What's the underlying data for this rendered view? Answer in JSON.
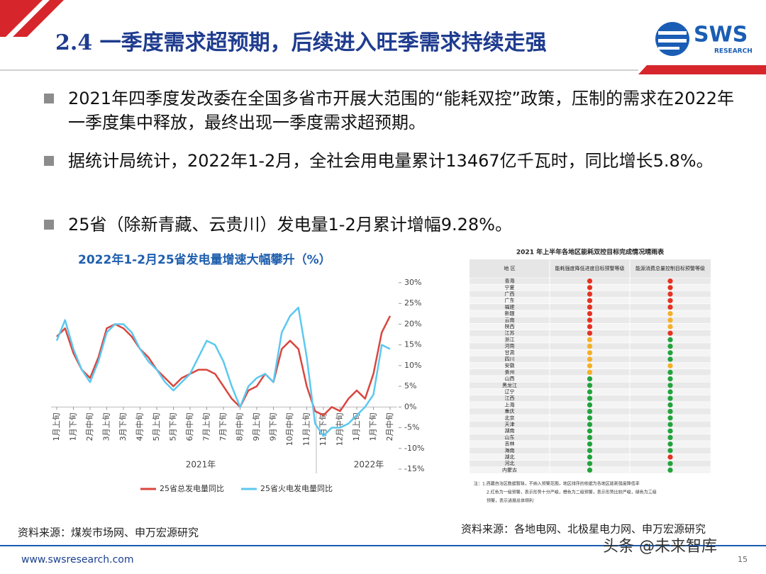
{
  "header": {
    "title": "2.4 一季度需求超预期，后续进入旺季需求持续走强",
    "logo": "SWS",
    "logo_sub": "RESEARCH"
  },
  "bullets": [
    "2021年四季度发改委在全国多省市开展大范围的“能耗双控”政策，压制的需求在2022年一季度集中释放，最终出现一季度需求超预期。",
    "据统计局统计，2022年1-2月，全社会用电量累计13467亿千瓦时，同比增长5.8%。",
    "25省（除新青藏、云贵川）发电量1-2月累计增幅9.28%。"
  ],
  "chart_data": {
    "type": "line",
    "title": "2022年1-2月25省发电量增速大幅攀升（%）",
    "categories": [
      "1月上旬",
      null,
      "1月下旬",
      null,
      "2月中旬",
      null,
      "3月上旬",
      null,
      "3月下旬",
      null,
      "4月中旬",
      null,
      "5月上旬",
      null,
      "5月下旬",
      null,
      "6月中旬",
      null,
      "7月上旬",
      null,
      "7月下旬",
      null,
      "8月中旬",
      null,
      "9月上旬",
      null,
      "9月下旬",
      null,
      "10月中旬",
      null,
      "11月上旬",
      null,
      "11月下旬",
      null,
      "12月中旬",
      null,
      "1月上旬",
      null,
      "1月下旬",
      null,
      "2月中旬"
    ],
    "year_labels": [
      "2021年",
      "2022年"
    ],
    "series": [
      {
        "name": "25省总发电量同比",
        "color": "#d9463e",
        "values": [
          17,
          19,
          13,
          9,
          7,
          12,
          19,
          20,
          19,
          17,
          14,
          12,
          9,
          7,
          5,
          7,
          8,
          9,
          9,
          8,
          5,
          2,
          0,
          4,
          5,
          8,
          6,
          14,
          16,
          14,
          5,
          -1,
          -2,
          0,
          -1,
          2,
          4,
          2,
          8,
          18,
          22
        ]
      },
      {
        "name": "25省火电发电量同比",
        "color": "#5cc8ef",
        "values": [
          16,
          21,
          14,
          9,
          6,
          11,
          18,
          20,
          20,
          18,
          14,
          11,
          9,
          6,
          4,
          6,
          8,
          12,
          16,
          15,
          11,
          5,
          0,
          5,
          7,
          8,
          6,
          18,
          22,
          24,
          12,
          -4,
          -7,
          -5,
          -5,
          -4,
          -2,
          0,
          3,
          15,
          14
        ]
      }
    ],
    "ylim": [
      -15,
      30
    ],
    "yticks": [
      {
        "value": -15,
        "label": "-15%"
      },
      {
        "value": -10,
        "label": "-10%"
      },
      {
        "value": -5,
        "label": "-5%"
      },
      {
        "value": 0,
        "label": "0%"
      },
      {
        "value": 5,
        "label": "5%"
      },
      {
        "value": 10,
        "label": "10%"
      },
      {
        "value": 15,
        "label": "15%"
      },
      {
        "value": 20,
        "label": "20%"
      },
      {
        "value": 25,
        "label": "25%"
      },
      {
        "value": 30,
        "label": "30%"
      }
    ]
  },
  "chart_source": "资料来源：煤炭市场网、申万宏源研究",
  "table": {
    "title": "2021 年上半年各地区能耗双控目标完成情况晴雨表",
    "headers": [
      "地 区",
      "能耗强度降低进度目标预警等级",
      "能源消费总量控制目标预警等级"
    ],
    "rows": [
      [
        "青海",
        "#e53222",
        "#e53222"
      ],
      [
        "宁夏",
        "#e53222",
        "#e53222"
      ],
      [
        "广西",
        "#e53222",
        "#e53222"
      ],
      [
        "广东",
        "#e53222",
        "#e53222"
      ],
      [
        "福建",
        "#e53222",
        "#e53222"
      ],
      [
        "新疆",
        "#e53222",
        "#f5b027"
      ],
      [
        "云南",
        "#e53222",
        "#f5b027"
      ],
      [
        "陕西",
        "#e53222",
        "#f5b027"
      ],
      [
        "江苏",
        "#e53222",
        "#e53222"
      ],
      [
        "浙江",
        "#f5b027",
        "#22a33c"
      ],
      [
        "河南",
        "#f5b027",
        "#22a33c"
      ],
      [
        "甘肃",
        "#f5b027",
        "#22a33c"
      ],
      [
        "四川",
        "#f5b027",
        "#22a33c"
      ],
      [
        "安徽",
        "#f5b027",
        "#f5b027"
      ],
      [
        "贵州",
        "#f5b027",
        "#22a33c"
      ],
      [
        "山西",
        "#22a33c",
        "#22a33c"
      ],
      [
        "黑龙江",
        "#22a33c",
        "#22a33c"
      ],
      [
        "辽宁",
        "#22a33c",
        "#22a33c"
      ],
      [
        "江西",
        "#22a33c",
        "#22a33c"
      ],
      [
        "上海",
        "#22a33c",
        "#22a33c"
      ],
      [
        "重庆",
        "#22a33c",
        "#22a33c"
      ],
      [
        "北京",
        "#22a33c",
        "#22a33c"
      ],
      [
        "天津",
        "#22a33c",
        "#22a33c"
      ],
      [
        "湖南",
        "#22a33c",
        "#22a33c"
      ],
      [
        "山东",
        "#22a33c",
        "#22a33c"
      ],
      [
        "吉林",
        "#22a33c",
        "#22a33c"
      ],
      [
        "海南",
        "#22a33c",
        "#22a33c"
      ],
      [
        "湖北",
        "#22a33c",
        "#e53222"
      ],
      [
        "河北",
        "#22a33c",
        "#22a33c"
      ],
      [
        "内蒙古",
        "#22a33c",
        "#22a33c"
      ]
    ],
    "notes": [
      "注：1.西藏自治区数据暂缺，不纳入预警范围，地区排序的依据为各地区能耗强度降低率",
      "2.红色为一级预警，表示形势十分严峻，橙色为二级预警，表示形势比较严峻，绿色为三级",
      "预警，表示进展总体顺利"
    ]
  },
  "table_source": "资料来源：各地电网、北极星电力网、申万宏源研究",
  "footer": {
    "url": "www.swsresearch.com",
    "page": "15",
    "watermark": "头条 @未来智库"
  }
}
